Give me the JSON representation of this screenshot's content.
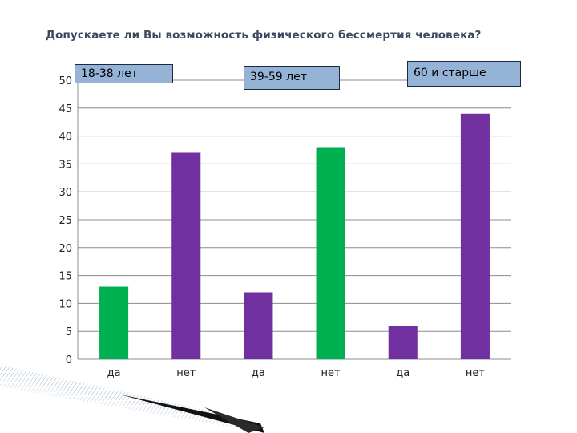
{
  "title": "Допускаете ли Вы возможность физического бессмертия человека?",
  "group_labels": [
    "18-38 лет",
    "39-59 лет",
    "60 и старше"
  ],
  "colors": {
    "green": "#00b050",
    "purple": "#7030a0",
    "box_fill": "#95b3d7",
    "grid": "#8c8c8c"
  },
  "chart_data": {
    "type": "bar",
    "categories": [
      "да",
      "нет",
      "да",
      "нет",
      "да",
      "нет"
    ],
    "values": [
      13,
      37,
      12,
      38,
      6,
      44
    ],
    "bar_colors": [
      "#00b050",
      "#7030a0",
      "#7030a0",
      "#00b050",
      "#7030a0",
      "#7030a0"
    ],
    "ylim": [
      0,
      50
    ],
    "yticks": [
      0,
      5,
      10,
      15,
      20,
      25,
      30,
      35,
      40,
      45,
      50
    ],
    "grid": true
  }
}
